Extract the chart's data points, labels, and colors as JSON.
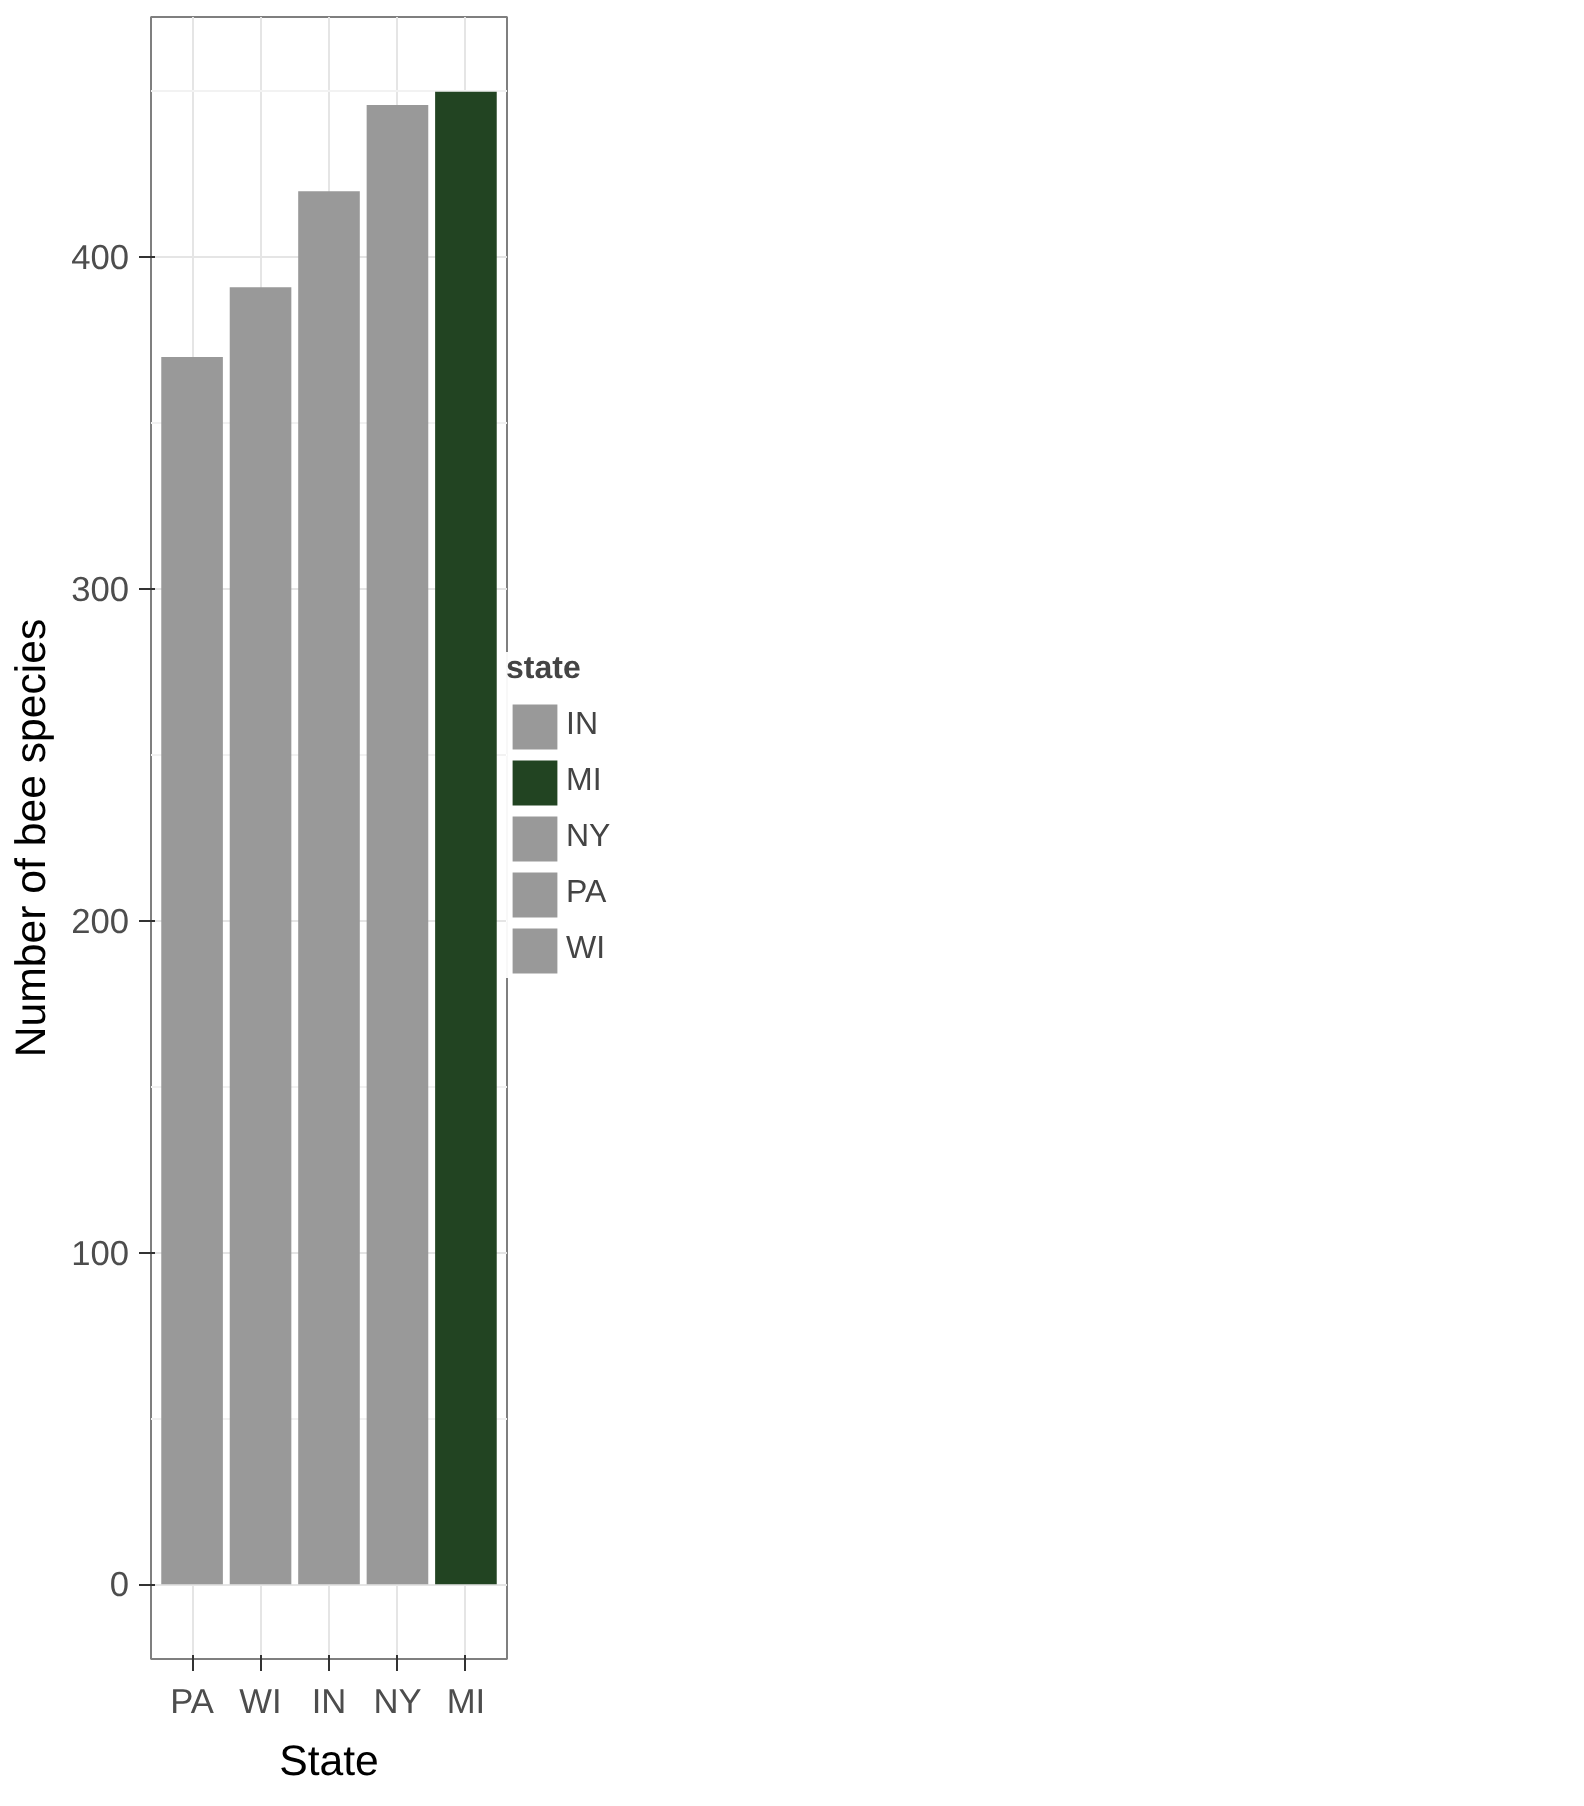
{
  "chart_data": {
    "type": "bar",
    "xlabel": "State",
    "ylabel": "Number of bee species",
    "legend_title": "state",
    "categories": [
      "PA",
      "WI",
      "IN",
      "NY",
      "MI"
    ],
    "series": [
      {
        "name": "IN",
        "color": "#999999",
        "values": [
          null,
          null,
          420,
          null,
          null
        ]
      },
      {
        "name": "MI",
        "color": "#224422",
        "values": [
          null,
          null,
          null,
          null,
          450
        ]
      },
      {
        "name": "NY",
        "color": "#999999",
        "values": [
          null,
          null,
          null,
          446,
          null
        ]
      },
      {
        "name": "PA",
        "color": "#999999",
        "values": [
          370,
          null,
          null,
          null,
          null
        ]
      },
      {
        "name": "WI",
        "color": "#999999",
        "values": [
          null,
          391,
          null,
          null,
          null
        ]
      }
    ],
    "ylim": [
      -22.5,
      472.5
    ],
    "yticks": [
      0,
      100,
      200,
      300,
      400
    ],
    "grid": true,
    "legend": "right"
  }
}
